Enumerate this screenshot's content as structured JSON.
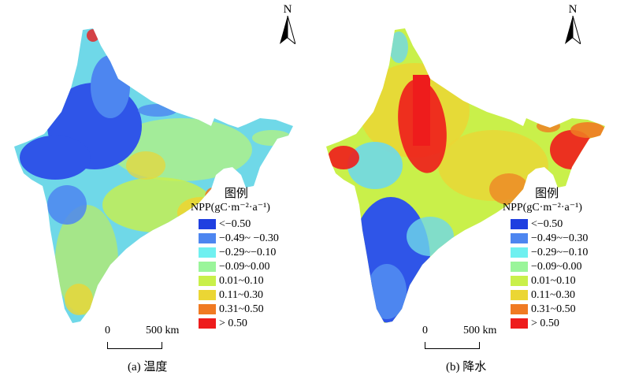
{
  "north_label": "N",
  "legend": {
    "title": "图例",
    "unit": "NPP(gC·m⁻²·a⁻¹)",
    "items": [
      {
        "label": "<−0.50",
        "color": "#1f3fe0"
      },
      {
        "label": "−0.49~ −0.30",
        "color": "#4d86f0"
      },
      {
        "label": "−0.29~−0.10",
        "color": "#6ff0f0"
      },
      {
        "label": "−0.09~0.00",
        "color": "#9af59a"
      },
      {
        "label": "0.01~0.10",
        "color": "#c9f04a"
      },
      {
        "label": "0.11~0.30",
        "color": "#ebd634"
      },
      {
        "label": "0.31~0.50",
        "color": "#f07a22"
      },
      {
        "label": "> 0.50",
        "color": "#ee1c1c"
      }
    ]
  },
  "scalebar": {
    "start": "0",
    "end": "500 km"
  },
  "panels": [
    {
      "caption": "(a) 温度",
      "legend_items": [
        {
          "label": "<−0.50"
        },
        {
          "label": "−0.49~ −0.30"
        },
        {
          "label": "−0.29~−0.10"
        },
        {
          "label": "−0.09~0.00"
        },
        {
          "label": "0.01~0.10"
        },
        {
          "label": "0.11~0.30"
        },
        {
          "label": "0.31~0.50"
        },
        {
          "label": "> 0.50"
        }
      ]
    },
    {
      "caption": "(b) 降水",
      "legend_items": [
        {
          "label": "<−0.50"
        },
        {
          "label": "−0.49~−0.30"
        },
        {
          "label": "−0.29~−0.10"
        },
        {
          "label": "−0.09~0.00"
        },
        {
          "label": "0.01~0.10"
        },
        {
          "label": "0.11~0.30"
        },
        {
          "label": "0.31~0.50"
        },
        {
          "label": "> 0.50"
        }
      ]
    }
  ]
}
